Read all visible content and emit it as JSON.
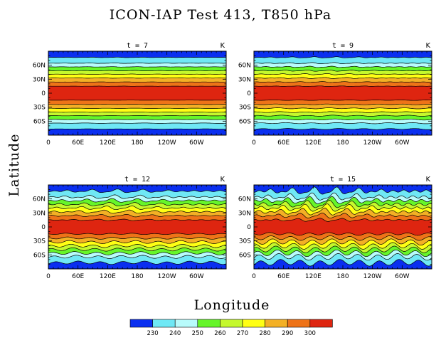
{
  "chart_data": {
    "type": "heatmap",
    "title": "ICON-IAP Test 413, T850 hPa",
    "xlabel": "Longitude",
    "ylabel": "Latitude",
    "unit": "K",
    "x_ticks": [
      "0",
      "60E",
      "120E",
      "180",
      "120W",
      "60W"
    ],
    "y_ticks": [
      "60N",
      "30N",
      "0",
      "30S",
      "60S"
    ],
    "levels": [
      230,
      240,
      250,
      260,
      270,
      280,
      290,
      300
    ],
    "colors": [
      "#0a2ff0",
      "#6fe8f5",
      "#b8fbfb",
      "#66f52a",
      "#c5f82d",
      "#ffff14",
      "#f3b025",
      "#ee7318",
      "#de2510"
    ],
    "colorbar_labels": [
      "230",
      "240",
      "250",
      "260",
      "270",
      "280",
      "290",
      "300"
    ],
    "panels": [
      {
        "label": "t = 7",
        "time": 7,
        "wave_amplitude_deg": 0.4
      },
      {
        "label": "t = 9",
        "time": 9,
        "wave_amplitude_deg": 1.2
      },
      {
        "label": "t = 12",
        "time": 12,
        "wave_amplitude_deg": 3.5
      },
      {
        "label": "t = 15",
        "time": 15,
        "wave_amplitude_deg": 7
      }
    ]
  }
}
